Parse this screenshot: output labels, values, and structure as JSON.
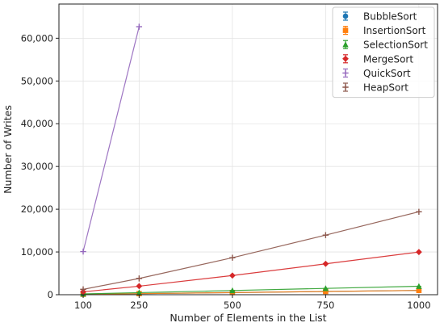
{
  "chart_data": {
    "type": "line",
    "xlabel": "Number of Elements in the List",
    "ylabel": "Number of Writes",
    "x_ticks": [
      100,
      250,
      500,
      750,
      1000
    ],
    "x_tick_labels": [
      "100",
      "250",
      "500",
      "750",
      "1000"
    ],
    "y_ticks": [
      0,
      10000,
      20000,
      30000,
      40000,
      50000,
      60000
    ],
    "y_tick_labels": [
      "0",
      "10,000",
      "20,000",
      "30,000",
      "40,000",
      "50,000",
      "60,000"
    ],
    "xlim": [
      35,
      1050
    ],
    "ylim": [
      0,
      68000
    ],
    "grid": true,
    "legend_position": "top-right",
    "series": [
      {
        "name": "BubbleSort",
        "color": "#1f77b4",
        "marker": "circle",
        "x": [
          100,
          250,
          500,
          750,
          1000
        ],
        "y": [
          100,
          250,
          500,
          750,
          1000
        ]
      },
      {
        "name": "InsertionSort",
        "color": "#ff7f0e",
        "marker": "square",
        "x": [
          100,
          250,
          500,
          750,
          1000
        ],
        "y": [
          100,
          250,
          500,
          750,
          1000
        ]
      },
      {
        "name": "SelectionSort",
        "color": "#2ca02c",
        "marker": "triangle",
        "x": [
          100,
          250,
          500,
          750,
          1000
        ],
        "y": [
          190,
          480,
          980,
          1480,
          1980
        ]
      },
      {
        "name": "MergeSort",
        "color": "#d62728",
        "marker": "diamond",
        "x": [
          100,
          250,
          500,
          750,
          1000
        ],
        "y": [
          670,
          2000,
          4480,
          7220,
          9980
        ]
      },
      {
        "name": "QuickSort",
        "color": "#9467bd",
        "marker": "plus",
        "x": [
          100,
          250
        ],
        "y": [
          10100,
          62700
        ]
      },
      {
        "name": "HeapSort",
        "color": "#8c564b",
        "marker": "plus",
        "x": [
          100,
          250,
          500,
          750,
          1000
        ],
        "y": [
          1250,
          3800,
          8650,
          13950,
          19400
        ]
      }
    ]
  }
}
